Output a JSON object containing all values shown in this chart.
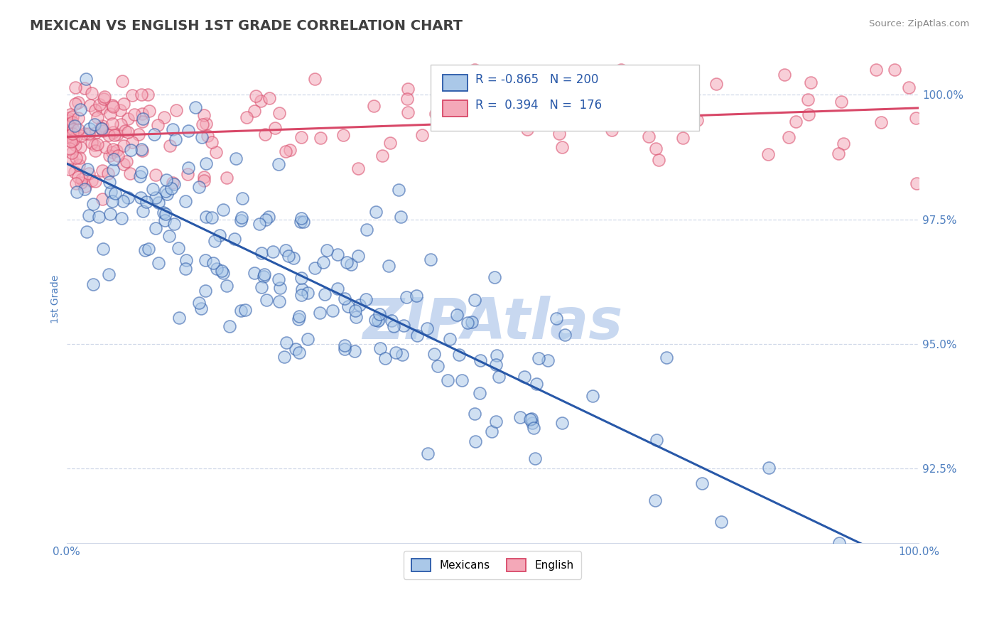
{
  "title": "MEXICAN VS ENGLISH 1ST GRADE CORRELATION CHART",
  "source": "Source: ZipAtlas.com",
  "ylabel": "1st Grade",
  "xlim": [
    0.0,
    1.0
  ],
  "ylim": [
    0.91,
    1.008
  ],
  "yticks": [
    0.925,
    0.95,
    0.975,
    1.0
  ],
  "ytick_labels": [
    "92.5%",
    "95.0%",
    "97.5%",
    "100.0%"
  ],
  "mexicans_R": -0.865,
  "mexicans_N": 200,
  "english_R": 0.394,
  "english_N": 176,
  "scatter_color_mexicans": "#aac8e8",
  "scatter_color_english": "#f4a8b8",
  "line_color_mexicans": "#2858a8",
  "line_color_english": "#d84868",
  "watermark": "ZIPAtlas",
  "watermark_color": "#c8d8f0",
  "background_color": "#ffffff",
  "title_color": "#404040",
  "axis_label_color": "#5080c0",
  "tick_label_color": "#5080c0",
  "grid_color": "#d0d8e8",
  "legend_color": "#2858a8"
}
